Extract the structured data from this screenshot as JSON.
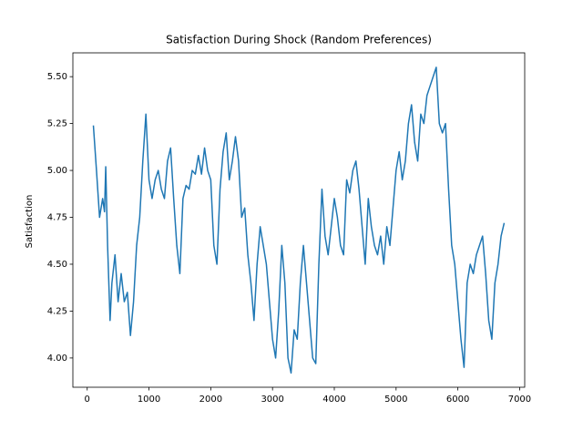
{
  "chart_data": {
    "type": "line",
    "title": "Satisfaction During Shock (Random Preferences)",
    "ylabel": "Satisfaction",
    "color": "#1f77b4",
    "x": [
      100,
      150,
      200,
      250,
      280,
      300,
      330,
      370,
      400,
      450,
      500,
      550,
      600,
      650,
      700,
      750,
      800,
      850,
      900,
      950,
      1000,
      1050,
      1100,
      1150,
      1200,
      1250,
      1300,
      1350,
      1400,
      1450,
      1500,
      1550,
      1600,
      1650,
      1700,
      1750,
      1800,
      1850,
      1900,
      1950,
      2000,
      2050,
      2100,
      2150,
      2200,
      2250,
      2300,
      2350,
      2400,
      2450,
      2500,
      2550,
      2600,
      2650,
      2700,
      2750,
      2800,
      2850,
      2900,
      2950,
      3000,
      3050,
      3100,
      3150,
      3200,
      3250,
      3300,
      3350,
      3400,
      3450,
      3500,
      3550,
      3600,
      3650,
      3700,
      3750,
      3800,
      3850,
      3900,
      3950,
      4000,
      4050,
      4100,
      4150,
      4200,
      4250,
      4300,
      4350,
      4400,
      4450,
      4500,
      4550,
      4600,
      4650,
      4700,
      4750,
      4800,
      4850,
      4900,
      4950,
      5000,
      5050,
      5100,
      5150,
      5200,
      5250,
      5300,
      5350,
      5400,
      5450,
      5500,
      5550,
      5600,
      5650,
      5700,
      5750,
      5800,
      5850,
      5900,
      5950,
      6000,
      6050,
      6100,
      6150,
      6200,
      6250,
      6300,
      6350,
      6400,
      6450,
      6500,
      6550,
      6600,
      6650,
      6700,
      6750
    ],
    "values": [
      5.24,
      5.0,
      4.75,
      4.85,
      4.78,
      5.02,
      4.6,
      4.2,
      4.4,
      4.55,
      4.3,
      4.45,
      4.3,
      4.35,
      4.12,
      4.3,
      4.6,
      4.75,
      5.05,
      5.3,
      4.95,
      4.85,
      4.95,
      5.0,
      4.9,
      4.85,
      5.05,
      5.12,
      4.85,
      4.6,
      4.45,
      4.85,
      4.92,
      4.9,
      5.0,
      4.98,
      5.08,
      4.98,
      5.12,
      5.0,
      4.95,
      4.6,
      4.5,
      4.9,
      5.1,
      5.2,
      4.95,
      5.05,
      5.18,
      5.05,
      4.75,
      4.8,
      4.55,
      4.4,
      4.2,
      4.5,
      4.7,
      4.6,
      4.5,
      4.3,
      4.1,
      4.0,
      4.25,
      4.6,
      4.4,
      4.0,
      3.92,
      4.15,
      4.1,
      4.4,
      4.6,
      4.4,
      4.2,
      4.0,
      3.97,
      4.5,
      4.9,
      4.65,
      4.55,
      4.7,
      4.85,
      4.75,
      4.6,
      4.55,
      4.95,
      4.88,
      5.0,
      5.05,
      4.9,
      4.7,
      4.5,
      4.85,
      4.7,
      4.6,
      4.55,
      4.65,
      4.5,
      4.7,
      4.6,
      4.8,
      5.0,
      5.1,
      4.95,
      5.05,
      5.25,
      5.35,
      5.15,
      5.05,
      5.3,
      5.25,
      5.4,
      5.45,
      5.5,
      5.55,
      5.25,
      5.2,
      5.25,
      4.9,
      4.6,
      4.5,
      4.3,
      4.1,
      3.95,
      4.4,
      4.5,
      4.45,
      4.55,
      4.6,
      4.65,
      4.45,
      4.2,
      4.1,
      4.4,
      4.5,
      4.65,
      4.72
    ],
    "xlim": [
      -232,
      7082
    ],
    "ylim": [
      3.844,
      5.627
    ],
    "xticks": [
      0,
      1000,
      2000,
      3000,
      4000,
      5000,
      6000,
      7000
    ],
    "yticks": [
      {
        "value": 4.0,
        "label": "4.00"
      },
      {
        "value": 4.25,
        "label": "4.25"
      },
      {
        "value": 4.5,
        "label": "4.50"
      },
      {
        "value": 4.75,
        "label": "4.75"
      },
      {
        "value": 5.0,
        "label": "5.00"
      },
      {
        "value": 5.25,
        "label": "5.25"
      },
      {
        "value": 5.5,
        "label": "5.50"
      }
    ]
  }
}
